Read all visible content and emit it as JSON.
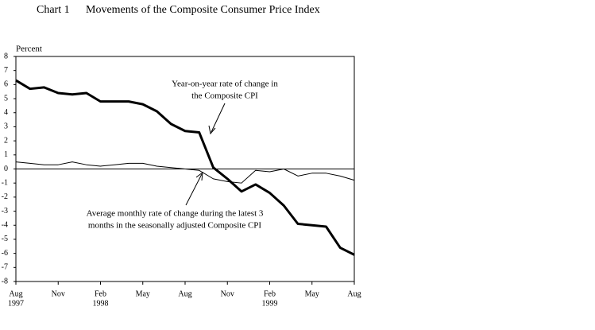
{
  "chart_data": {
    "type": "line",
    "chart_label": "Chart 1",
    "title": "Movements of the Composite Consumer Price Index",
    "y_label": "Percent",
    "categories": [
      "Aug",
      null,
      null,
      "Nov",
      null,
      null,
      "Feb",
      null,
      null,
      "May",
      null,
      null,
      "Aug",
      null,
      null,
      "Nov",
      null,
      null,
      "Feb",
      null,
      null,
      "May",
      null,
      null,
      "Aug"
    ],
    "category_years": [
      "1997",
      null,
      null,
      null,
      null,
      null,
      "1998",
      null,
      null,
      null,
      null,
      null,
      null,
      null,
      null,
      null,
      null,
      null,
      "1999",
      null,
      null,
      null,
      null,
      null,
      null
    ],
    "series": [
      {
        "color": "#000000",
        "values": [
          6.3,
          5.7,
          5.8,
          5.4,
          5.3,
          5.4,
          4.8,
          4.8,
          4.8,
          4.6,
          4.1,
          3.2,
          2.7,
          2.6,
          0.1,
          -0.7,
          -1.6,
          -1.1,
          -1.7,
          -2.6,
          -3.9,
          -4.0,
          -4.1,
          -5.6,
          -6.1
        ]
      },
      {
        "color": "#000000",
        "values": [
          0.5,
          0.4,
          0.3,
          0.3,
          0.5,
          0.3,
          0.2,
          0.3,
          0.4,
          0.4,
          0.2,
          0.1,
          0.0,
          -0.1,
          -0.7,
          -0.9,
          -1.0,
          -0.1,
          -0.2,
          0.0,
          -0.5,
          -0.3,
          -0.3,
          -0.5,
          -0.8
        ]
      }
    ],
    "annotations": [
      [
        "Year-on-year rate of change in",
        "the Composite CPI"
      ],
      [
        "Average monthly rate of change during the latest 3",
        "months in the seasonally adjusted Composite CPI"
      ]
    ],
    "ylim": [
      -8,
      8
    ],
    "yticks": [
      -8,
      -7,
      -6,
      -5,
      -4,
      -3,
      -2,
      -1,
      0,
      1,
      2,
      3,
      4,
      5,
      6,
      7,
      8
    ]
  }
}
